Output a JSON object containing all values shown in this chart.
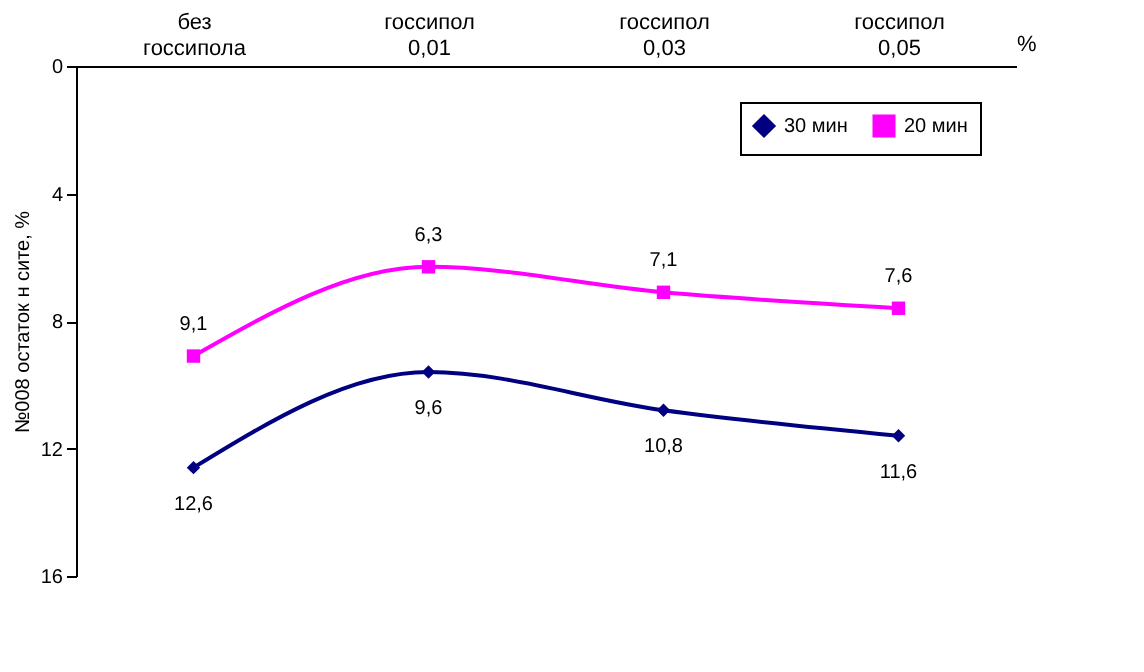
{
  "chart_data": {
    "type": "line",
    "categories": [
      "без\nгоссипола",
      "госсипол\n0,01",
      "госсипол\n0,03",
      "госсипол\n0,05"
    ],
    "xlabel": "%",
    "ylabel": "№008 остаток н сите, %",
    "ylim": [
      16,
      0
    ],
    "yticks": [
      0,
      4,
      8,
      12,
      16
    ],
    "series": [
      {
        "name": "30 мин",
        "color": "#000080",
        "marker": "diamond",
        "values": [
          12.6,
          9.6,
          10.8,
          11.6
        ],
        "value_labels": [
          "12,6",
          "9,6",
          "10,8",
          "11,6"
        ]
      },
      {
        "name": "20 мин",
        "color": "#ff00ff",
        "marker": "square",
        "values": [
          9.1,
          6.3,
          7.1,
          7.6
        ],
        "value_labels": [
          "9,1",
          "6,3",
          "7,1",
          "7,6"
        ]
      }
    ],
    "grid": false,
    "legend": "top right"
  }
}
